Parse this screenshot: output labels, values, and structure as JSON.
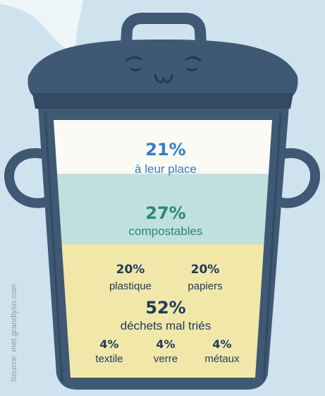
{
  "source": "Source: met.grandlyon.com",
  "colors": {
    "background": "#cfe3ee",
    "bin": "#3f5874",
    "bin_dark": "#334a63",
    "segment_place": "#fbfaf4",
    "segment_compost": "#bfe0de",
    "segment_misorted": "#f1e7a9",
    "text_blue": "#2e7fc7",
    "text_green": "#2a8a6b",
    "text_dark": "#1e3a5c"
  },
  "chart_data": {
    "type": "bar",
    "categories": [
      "à leur place",
      "compostables",
      "déchets mal triés"
    ],
    "values": [
      21,
      27,
      52
    ],
    "unit": "%",
    "breakdown": {
      "parent": "déchets mal triés",
      "categories": [
        "plastique",
        "papiers",
        "textile",
        "verre",
        "métaux"
      ],
      "values": [
        20,
        20,
        4,
        4,
        4
      ]
    }
  },
  "labels": {
    "place_pct": "21%",
    "place_label": "à leur place",
    "compost_pct": "27%",
    "compost_label": "compostables",
    "misorted_pct": "52%",
    "misorted_label": "déchets mal triés",
    "plastique_pct": "20%",
    "plastique_label": "plastique",
    "papiers_pct": "20%",
    "papiers_label": "papiers",
    "textile_pct": "4%",
    "textile_label": "textile",
    "verre_pct": "4%",
    "verre_label": "verre",
    "metaux_pct": "4%",
    "metaux_label": "métaux"
  }
}
